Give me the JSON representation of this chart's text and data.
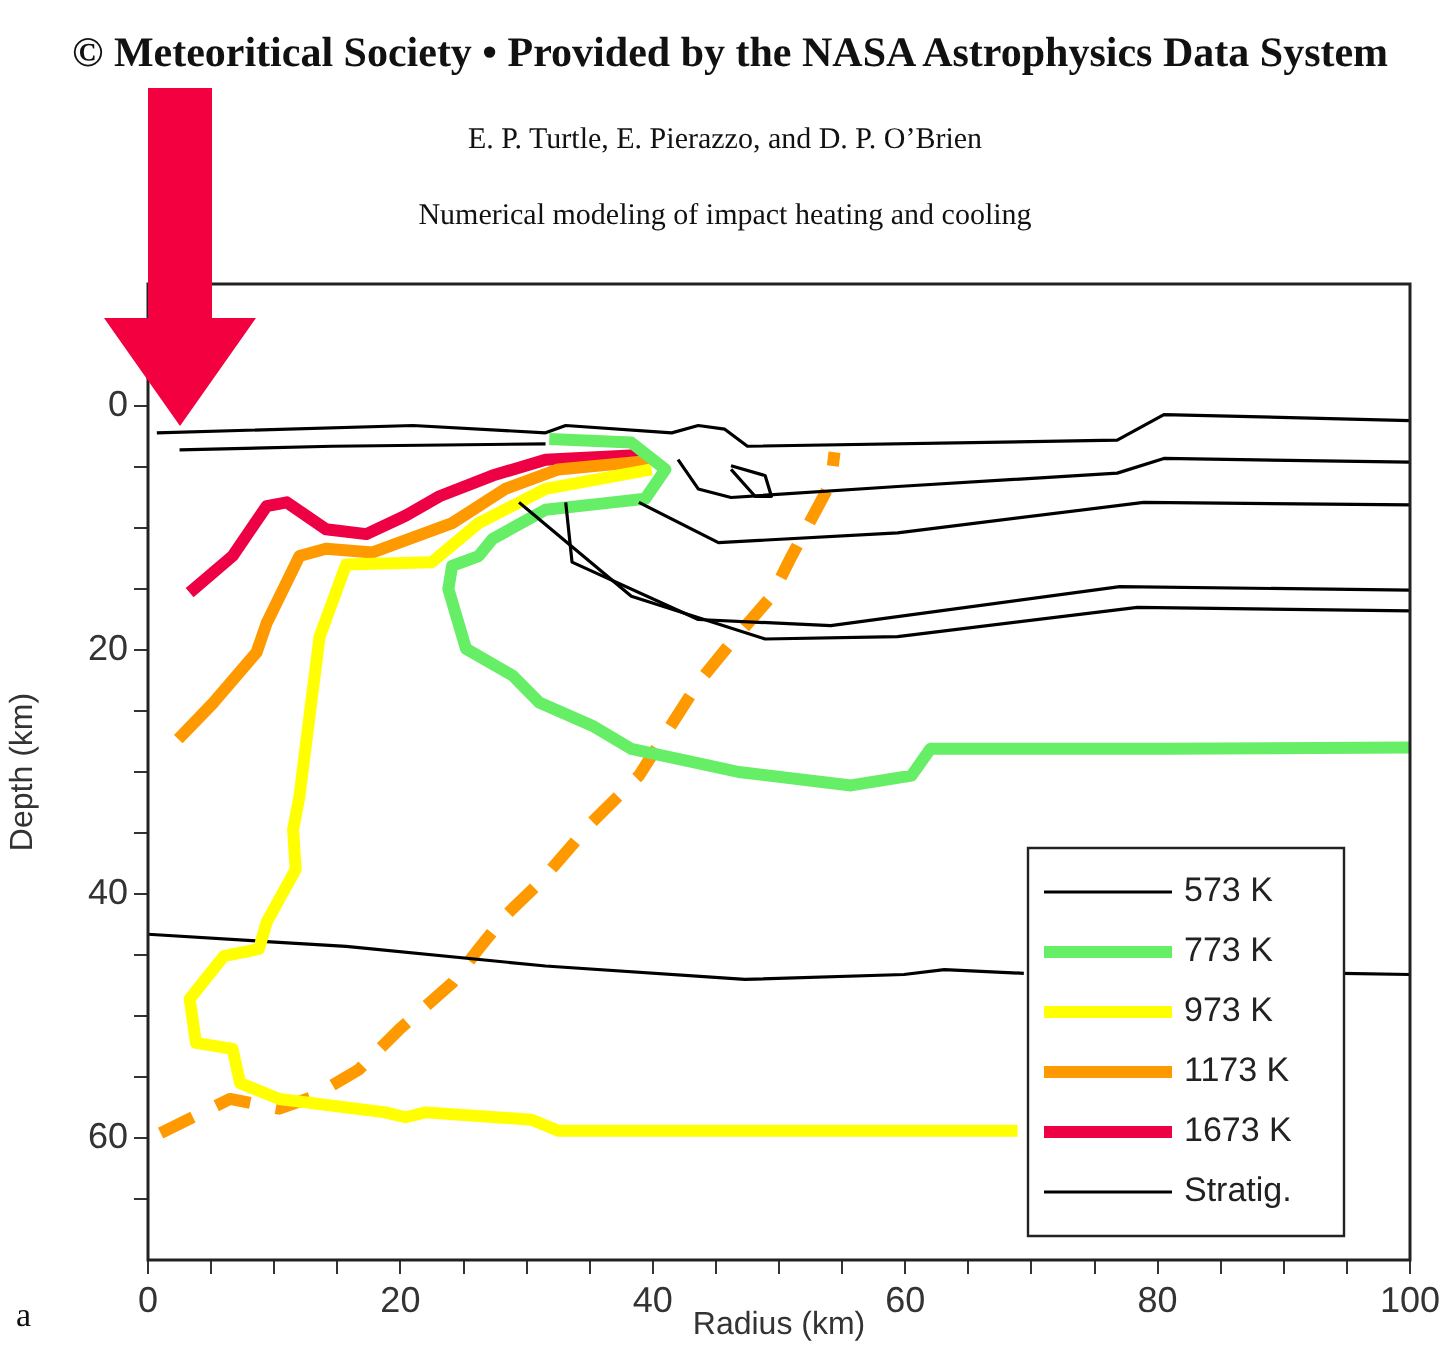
{
  "chart_data": {
    "type": "line",
    "xlabel": "Radius (km)",
    "ylabel": "Depth (km)",
    "annotations": [
      "© Meteoritical Society • Provided by the NASA Astrophysics Data System",
      "E. P. Turtle, E. Pierazzo, and D. P. O’Brien",
      "Numerical modeling of impact heating and cooling",
      "a"
    ],
    "xlim": [
      0,
      100
    ],
    "xticks": [
      0,
      {
        "value": 5,
        "label": null
      },
      {
        "value": 10,
        "label": null
      },
      {
        "value": 15,
        "label": null
      },
      20,
      {
        "value": 25,
        "label": null
      },
      {
        "value": 30,
        "label": null
      },
      {
        "value": 35,
        "label": null
      },
      40,
      {
        "value": 45,
        "label": null
      },
      {
        "value": 50,
        "label": null
      },
      {
        "value": 55,
        "label": null
      },
      60,
      {
        "value": 65,
        "label": null
      },
      {
        "value": 70,
        "label": null
      },
      {
        "value": 75,
        "label": null
      },
      80,
      {
        "value": 85,
        "label": null
      },
      {
        "value": 90,
        "label": null
      },
      {
        "value": 95,
        "label": null
      },
      100
    ],
    "ylim": [
      70,
      -10
    ],
    "yticks": [
      {
        "value": -5,
        "label": null
      },
      0,
      {
        "value": 5,
        "label": null
      },
      {
        "value": 10,
        "label": null
      },
      {
        "value": 15,
        "label": null
      },
      20,
      {
        "value": 25,
        "label": null
      },
      {
        "value": 30,
        "label": null
      },
      {
        "value": 35,
        "label": null
      },
      40,
      {
        "value": 45,
        "label": null
      },
      {
        "value": 50,
        "label": null
      },
      {
        "value": 55,
        "label": null
      },
      60,
      {
        "value": 65,
        "label": null
      }
    ],
    "grid": false,
    "legend": "bottom right",
    "marker": "none",
    "series": [
      {
        "name": "573 K",
        "color": "#000000",
        "line_style": "solid",
        "x": [
          2.5,
          14.6,
          31.5
        ],
        "values": [
          3.6,
          3.3,
          3.1
        ]
      },
      {
        "color": "#000000",
        "line_style": "solid",
        "x": [
          0.7,
          21.0,
          31.5,
          33.1,
          41.5,
          43.6,
          45.7,
          47.5,
          76.8,
          80.5,
          100
        ],
        "values": [
          2.2,
          1.6,
          2.2,
          1.6,
          2.2,
          1.6,
          1.9,
          3.3,
          2.8,
          0.7,
          1.2
        ]
      },
      {
        "color": "#000000",
        "line_style": "solid",
        "x": [
          42.0,
          43.6,
          46.2,
          59.4,
          76.8,
          80.5,
          100
        ],
        "values": [
          4.4,
          6.8,
          7.5,
          6.6,
          5.5,
          4.3,
          4.6
        ]
      },
      {
        "color": "#000000",
        "line_style": "solid",
        "x": [
          38.9,
          45.2,
          59.4,
          78.9,
          100
        ],
        "values": [
          7.9,
          11.2,
          10.4,
          7.9,
          8.1
        ]
      },
      {
        "color": "#000000",
        "line_style": "solid",
        "x": [
          33.1,
          33.6,
          43.6,
          54.1,
          77.0,
          100
        ],
        "values": [
          7.9,
          12.8,
          17.5,
          18.0,
          14.8,
          15.1
        ]
      },
      {
        "color": "#000000",
        "line_style": "solid",
        "x": [
          29.4,
          38.3,
          48.9,
          59.4,
          78.4,
          100
        ],
        "values": [
          7.9,
          15.6,
          19.1,
          18.9,
          16.5,
          16.8
        ]
      },
      {
        "color": "#000000",
        "line_style": "solid",
        "x": [
          46.2,
          48.9,
          49.4,
          48.1,
          46.2
        ],
        "values": [
          4.9,
          5.7,
          7.4,
          7.4,
          5.2
        ]
      },
      {
        "name": "773 K",
        "color": "#66ee66",
        "line_style": "solid",
        "x": [
          31.8,
          38.3,
          41.0,
          39.4,
          36.8,
          31.5,
          27.3,
          26.2,
          24.1,
          23.8,
          25.2,
          28.9,
          31.0,
          35.2,
          38.3,
          46.8,
          55.7,
          60.5,
          62.0,
          80.5,
          100
        ],
        "values": [
          2.7,
          3.0,
          5.2,
          7.6,
          7.9,
          8.5,
          10.9,
          12.3,
          13.1,
          15.0,
          19.9,
          22.1,
          24.3,
          26.2,
          28.1,
          30.0,
          31.1,
          30.3,
          28.1,
          28.1,
          28.0
        ]
      },
      {
        "name": "973 K",
        "color": "#ffff00",
        "line_style": "solid",
        "x": [
          39.9,
          31.5,
          26.2,
          22.5,
          15.7,
          13.6,
          12.8,
          12.0,
          11.5,
          11.7,
          9.4,
          8.8,
          6.0,
          3.3,
          3.8,
          6.7,
          7.3,
          10.4,
          18.8,
          20.4,
          22.0,
          30.4,
          32.5,
          61.0,
          68.9
        ],
        "values": [
          5.2,
          6.8,
          9.6,
          12.8,
          13.0,
          18.9,
          25.4,
          32.0,
          34.7,
          38.0,
          42.3,
          44.5,
          45.1,
          48.6,
          52.2,
          52.7,
          55.5,
          56.8,
          57.9,
          58.3,
          57.9,
          58.5,
          59.4,
          59.4,
          59.4
        ]
      },
      {
        "name": "1173 K",
        "color": "#ff9900",
        "line_style": "solid",
        "x": [
          2.4,
          5.2,
          8.6,
          9.4,
          12.0,
          14.1,
          17.8,
          24.1,
          28.3,
          32.5,
          39.7
        ],
        "values": [
          27.3,
          24.3,
          20.2,
          17.8,
          12.3,
          11.7,
          12.0,
          9.6,
          6.8,
          5.2,
          4.5
        ]
      },
      {
        "name": "1673 K",
        "color": "#ee0044",
        "line_style": "solid",
        "x": [
          3.3,
          6.7,
          9.4,
          11.0,
          14.1,
          17.3,
          20.4,
          23.1,
          27.3,
          31.5,
          39.4
        ],
        "values": [
          15.3,
          12.3,
          8.2,
          7.9,
          10.1,
          10.5,
          9.0,
          7.4,
          5.7,
          4.4,
          4.0
        ]
      },
      {
        "name": "Stratig.",
        "color": "#000000",
        "line_style": "solid",
        "x": [
          0,
          15.7,
          31.5,
          47.3,
          59.9,
          63.1,
          69.4,
          80,
          94.6,
          100
        ],
        "values": [
          43.3,
          44.3,
          45.9,
          47.0,
          46.6,
          46.2,
          46.5,
          null,
          46.5,
          46.6
        ]
      },
      {
        "color": "#ff9900",
        "line_style": "dashed",
        "x": [
          1.0,
          6.5,
          10.4,
          13.1,
          16.7,
          19.9,
          24.1,
          26.2,
          28.3,
          31.0,
          35.2,
          38.9,
          43.6,
          46.2,
          49.4,
          51.0,
          54.1,
          54.4
        ],
        "values": [
          59.6,
          56.8,
          57.6,
          56.6,
          54.4,
          51.1,
          47.3,
          44.5,
          41.8,
          39.1,
          34.1,
          30.3,
          22.7,
          19.4,
          15.6,
          12.3,
          6.3,
          3.8
        ]
      }
    ]
  }
}
